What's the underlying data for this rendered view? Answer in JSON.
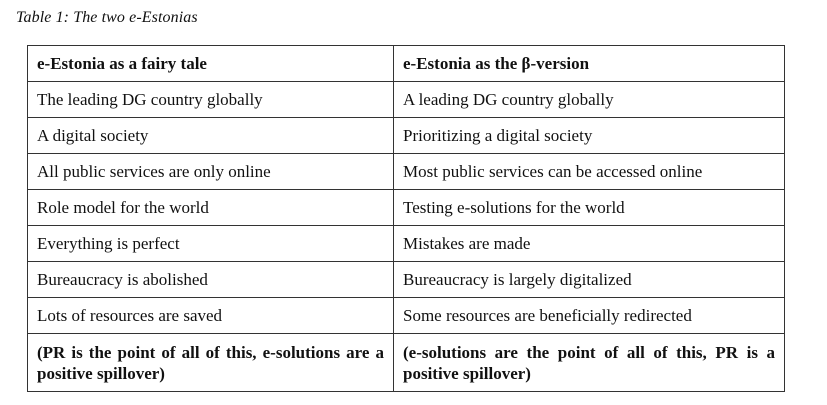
{
  "caption": "Table 1: The two e-Estonias",
  "table": {
    "headers": [
      "e-Estonia as a fairy tale",
      "e-Estonia as the β-version"
    ],
    "rows": [
      [
        "The leading DG country globally",
        "A leading DG country globally"
      ],
      [
        "A digital society",
        "Prioritizing a digital society"
      ],
      [
        "All public services are only online",
        "Most public services can be accessed online"
      ],
      [
        "Role model for the world",
        "Testing e-solutions for the world"
      ],
      [
        "Everything is perfect",
        "Mistakes are made"
      ],
      [
        "Bureaucracy is abolished",
        "Bureaucracy is largely digitalized"
      ],
      [
        "Lots of resources are saved",
        "Some resources are beneficially redirected"
      ],
      [
        "(PR is the point of all of this, e-solutions are a positive spillover)",
        "(e-solutions are the point of all of this, PR is a positive spillover)"
      ]
    ]
  }
}
